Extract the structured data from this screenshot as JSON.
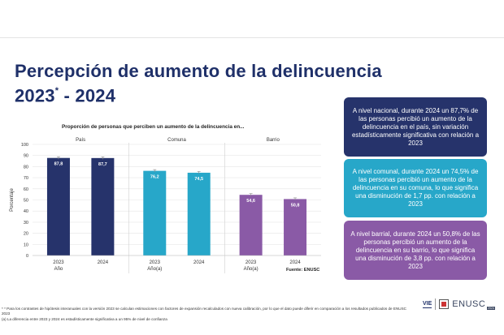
{
  "title": {
    "line1": "Percepción de aumento de la delincuencia",
    "line2_a": "2023",
    "line2_star": "*",
    "line2_b": " - 2024"
  },
  "chart_data": {
    "type": "bar",
    "title": "Proporción de personas que perciben un aumento de la delincuencia en...",
    "ylabel": "Porcentaje",
    "ylim": [
      0,
      100
    ],
    "yticks": [
      0,
      10,
      20,
      30,
      40,
      50,
      60,
      70,
      80,
      90,
      100
    ],
    "grid": true,
    "groups": [
      {
        "name": "País",
        "xlabel": "Año",
        "color": "#26336b",
        "categories": [
          "2023",
          "2024"
        ],
        "values": [
          87.8,
          87.7
        ],
        "labels": [
          "87,8",
          "87,7"
        ]
      },
      {
        "name": "Comuna",
        "xlabel": "Año(a)",
        "color": "#27a7c9",
        "categories": [
          "2023",
          "2024"
        ],
        "values": [
          76.2,
          74.5
        ],
        "labels": [
          "76,2",
          "74,5"
        ]
      },
      {
        "name": "Barrio",
        "xlabel": "Año(a)",
        "color": "#8a5aa6",
        "categories": [
          "2023",
          "2024"
        ],
        "values": [
          54.6,
          50.8
        ],
        "labels": [
          "54,6",
          "50,8"
        ]
      }
    ]
  },
  "source": "Fuente: ENUSC",
  "boxes": [
    "A nivel nacional, durante 2024 un 87,7% de las personas percibió un aumento de la delincuencia en el país, sin variación estadísticamente significativa con relación a 2023",
    "A nivel comunal, durante 2024 un 74,5% de las personas percibió un aumento de la delincuencia en su comuna, lo que significa una disminución de 1,7 pp. con relación a 2023",
    "A nivel barrial, durante 2024 un 50,8% de las personas percibió un aumento de la delincuencia en su barrio, lo que significa una disminución de 3,8 pp. con relación a 2023"
  ],
  "footnotes": [
    "* Para los contrastes de hipótesis interanuales con la versión 2023 se calculan estimaciones con factores de expansión recalculados con nueva calibración, por lo que el dato puede diferir en comparación a los resultados publicados de ENUSC 2023",
    "(a) La diferencia entre 2023 y 2024 es estadísticamente significativa a un 95% de nivel de confianza"
  ],
  "logos": {
    "vie": "VIE",
    "enusc": "ENUSC",
    "year": "2024"
  }
}
